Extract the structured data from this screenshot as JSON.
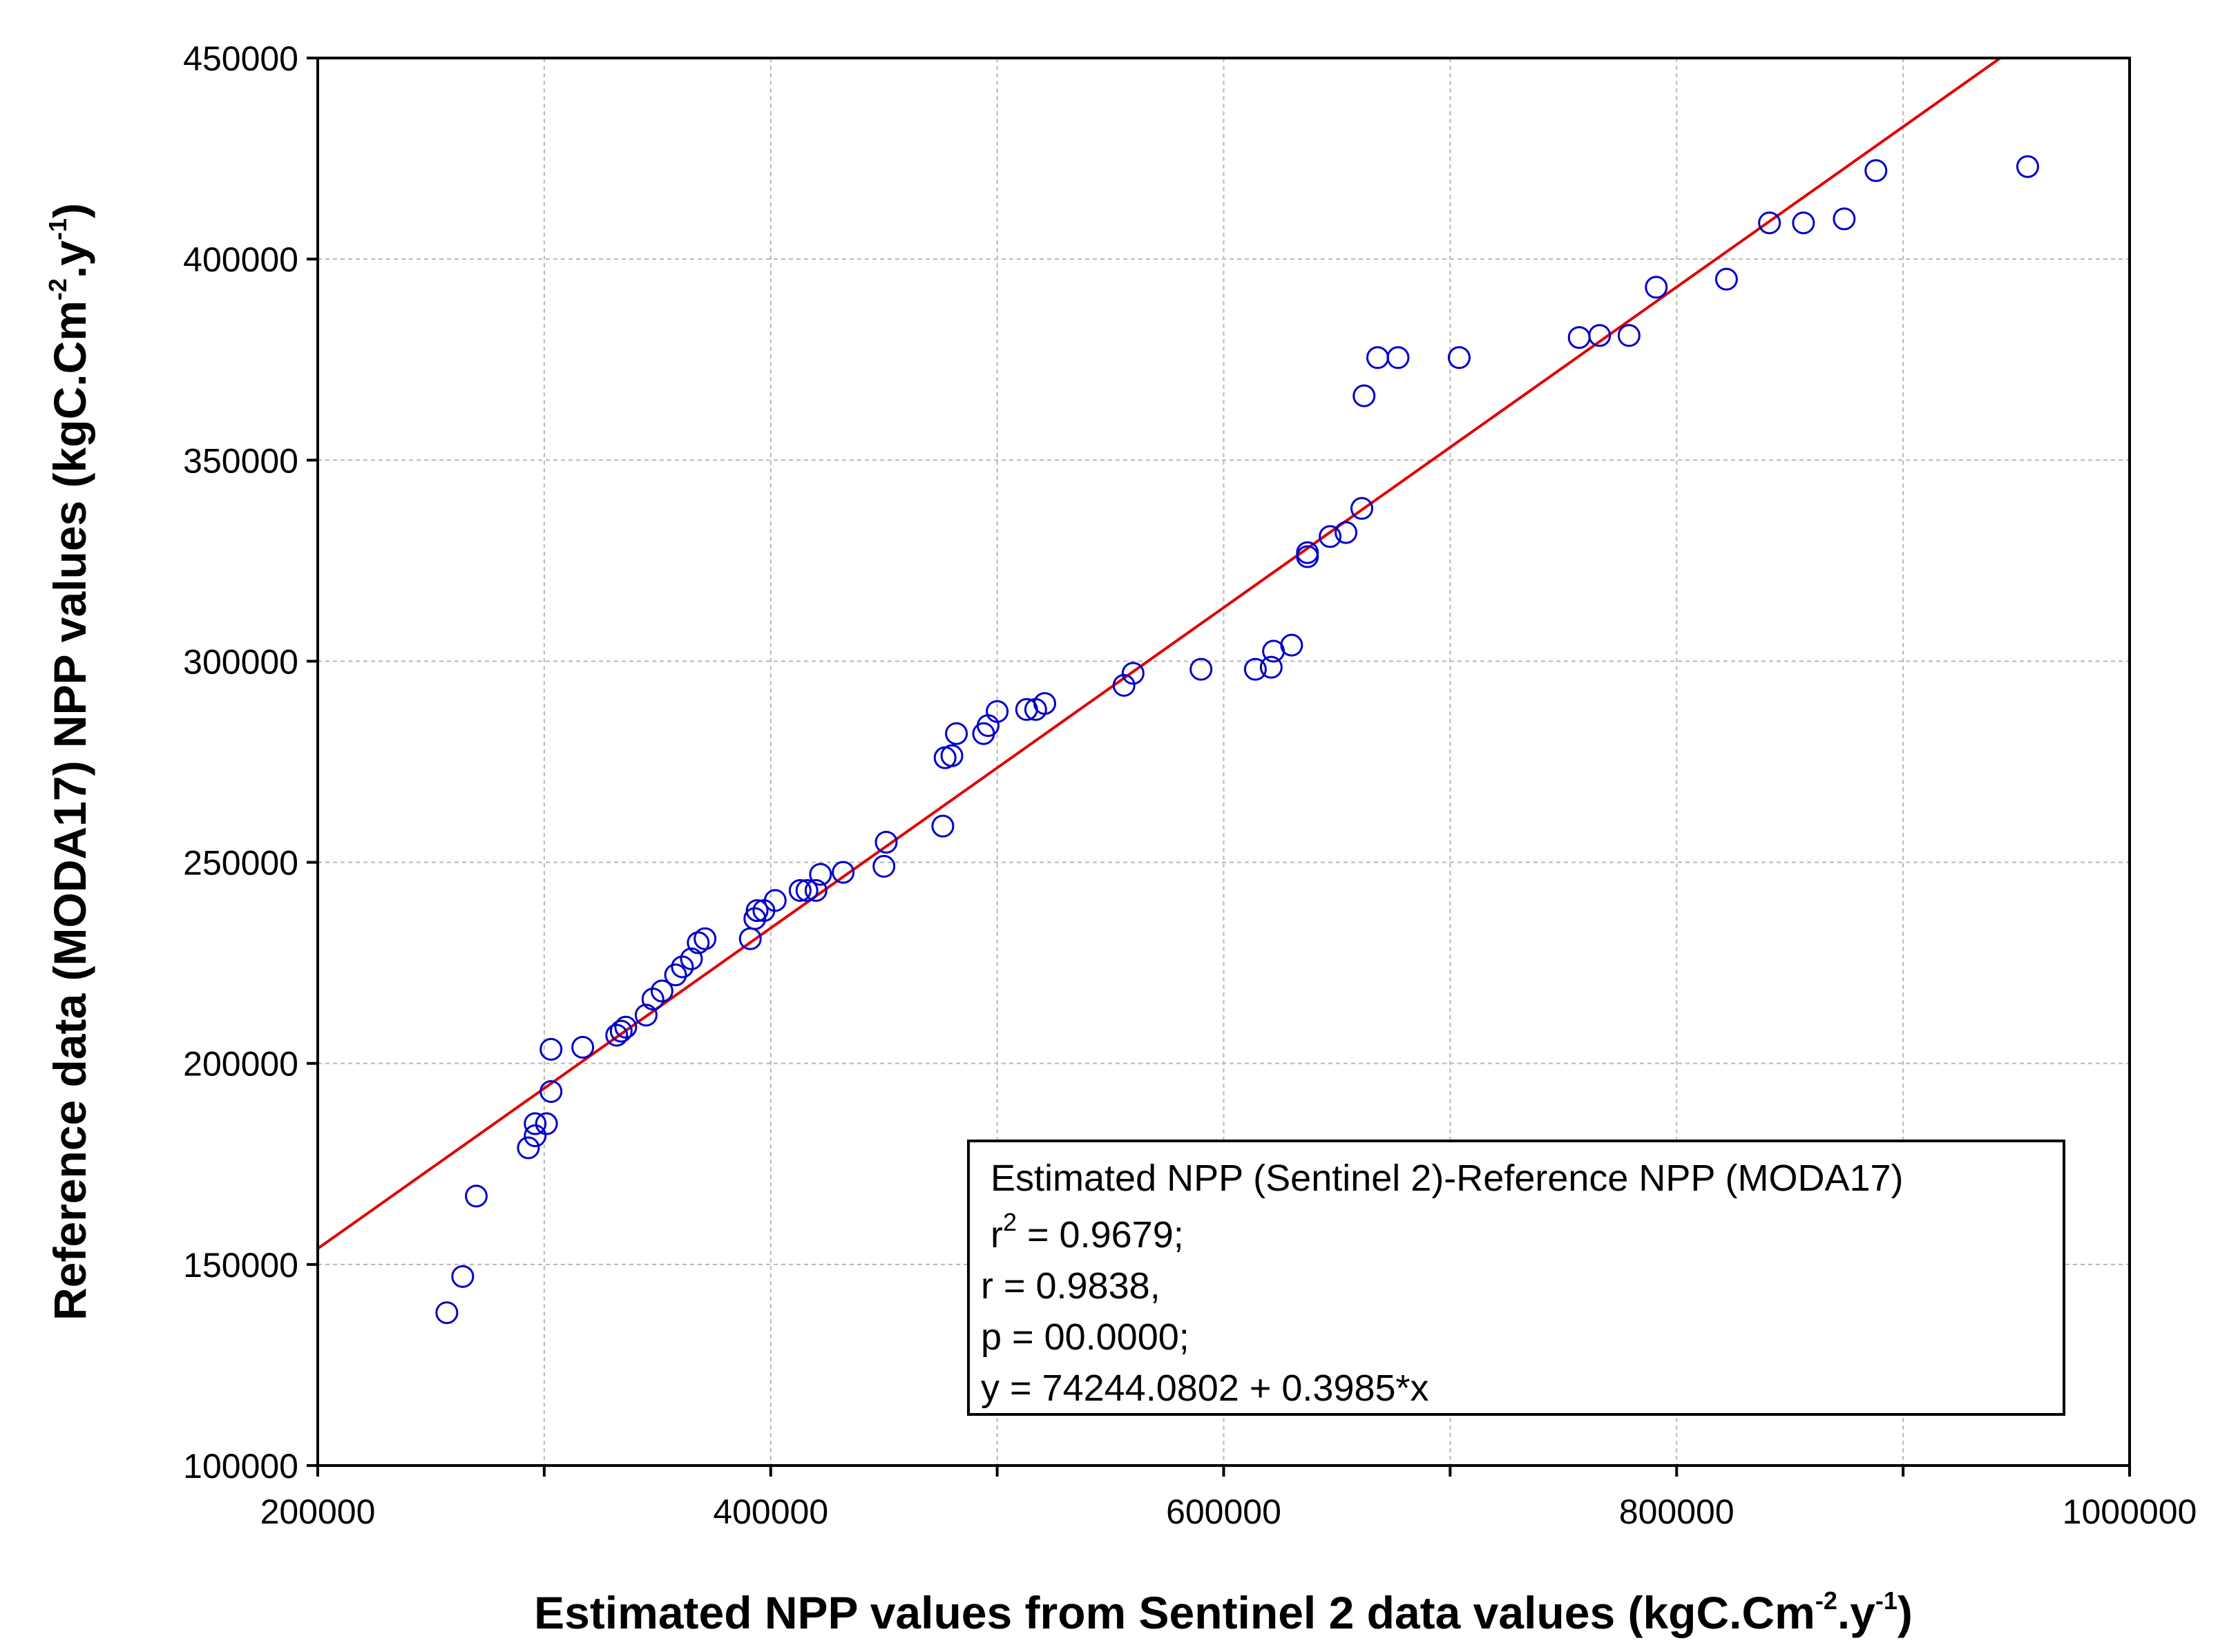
{
  "chart_data": {
    "type": "scatter",
    "xlabel": {
      "main": "Estimated NPP values from Sentinel 2 data  values (kgC.Cm",
      "exp1": "-2",
      "mid": ".y",
      "exp2": "-1",
      "end": ")"
    },
    "ylabel": {
      "main": "Reference data (MODA17) NPP values (kgC.Cm",
      "exp1": "-2",
      "mid": ".y",
      "exp2": "-1",
      "end": ")"
    },
    "xlim": [
      200000,
      1000000
    ],
    "ylim": [
      100000,
      450000
    ],
    "xticks": [
      200000,
      400000,
      600000,
      800000,
      1000000
    ],
    "xticks_minor": [
      300000,
      500000,
      700000,
      900000
    ],
    "yticks": [
      100000,
      150000,
      200000,
      250000,
      300000,
      350000,
      400000,
      450000
    ],
    "xtick_labels": [
      "200000",
      "400000",
      "600000",
      "800000",
      "1000000"
    ],
    "ytick_labels": [
      "100000",
      "150000",
      "200000",
      "250000",
      "300000",
      "350000",
      "400000",
      "450000"
    ],
    "grid": true,
    "marker_color": "#0000cc",
    "fit_color": "#e00000",
    "fit": {
      "intercept": 74244.0802,
      "slope": 0.3985
    },
    "points": [
      [
        257000,
        138000
      ],
      [
        264000,
        147000
      ],
      [
        270000,
        167000
      ],
      [
        293000,
        179000
      ],
      [
        296000,
        182000
      ],
      [
        296000,
        185000
      ],
      [
        301000,
        185000
      ],
      [
        303000,
        193000
      ],
      [
        303000,
        203500
      ],
      [
        317000,
        204000
      ],
      [
        332000,
        207000
      ],
      [
        334000,
        208000
      ],
      [
        336000,
        209000
      ],
      [
        345000,
        212000
      ],
      [
        348000,
        216000
      ],
      [
        352000,
        218000
      ],
      [
        358000,
        222000
      ],
      [
        361000,
        224000
      ],
      [
        365000,
        226000
      ],
      [
        368000,
        230000
      ],
      [
        371000,
        231000
      ],
      [
        391000,
        231000
      ],
      [
        393000,
        236000
      ],
      [
        394000,
        238000
      ],
      [
        397000,
        238000
      ],
      [
        402000,
        240500
      ],
      [
        413000,
        243000
      ],
      [
        416000,
        243000
      ],
      [
        420000,
        243000
      ],
      [
        422000,
        247000
      ],
      [
        432000,
        247500
      ],
      [
        450000,
        249000
      ],
      [
        451000,
        255000
      ],
      [
        476000,
        259000
      ],
      [
        477000,
        276000
      ],
      [
        480000,
        276500
      ],
      [
        482000,
        282000
      ],
      [
        494000,
        282000
      ],
      [
        496000,
        284000
      ],
      [
        500000,
        287500
      ],
      [
        513000,
        288000
      ],
      [
        517000,
        288000
      ],
      [
        521000,
        289500
      ],
      [
        556000,
        294000
      ],
      [
        560000,
        297000
      ],
      [
        590000,
        298000
      ],
      [
        614000,
        298000
      ],
      [
        621000,
        298500
      ],
      [
        622000,
        302500
      ],
      [
        630000,
        304000
      ],
      [
        637000,
        326000
      ],
      [
        637000,
        327000
      ],
      [
        647000,
        331000
      ],
      [
        654000,
        332000
      ],
      [
        661000,
        338000
      ],
      [
        662000,
        366000
      ],
      [
        668000,
        375500
      ],
      [
        677000,
        375500
      ],
      [
        704000,
        375500
      ],
      [
        757000,
        380500
      ],
      [
        766000,
        381000
      ],
      [
        779000,
        381000
      ],
      [
        791000,
        393000
      ],
      [
        822000,
        395000
      ],
      [
        841000,
        409000
      ],
      [
        856000,
        409000
      ],
      [
        874000,
        410000
      ],
      [
        888000,
        422000
      ],
      [
        955000,
        423000
      ]
    ],
    "legend": {
      "position": "bottom-right",
      "title": "Estimated NPP (Sentinel 2)-Reference NPP (MODA17)",
      "r2_prefix": "r",
      "r2_exp": "2",
      "r2_value": " = 0.9679;",
      "r_line": "r = 0.9838,",
      "p_line": " p = 00.0000;",
      "eq_line": "y = 74244.0802 + 0.3985*x"
    }
  }
}
